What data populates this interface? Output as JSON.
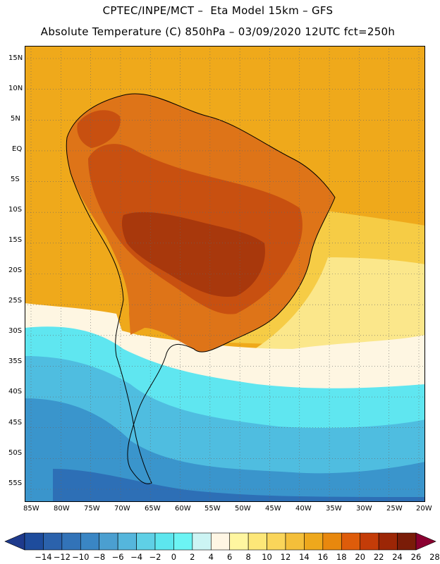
{
  "header": {
    "line1": "CPTEC/INPE/MCT –  Eta Model 15km – GFS",
    "line2": "Absolute Temperature (C) 850hPa – 03/09/2020 12UTC fct=250h"
  },
  "axes": {
    "lat_labels": [
      "15N",
      "10N",
      "5N",
      "EQ",
      "5S",
      "10S",
      "15S",
      "20S",
      "25S",
      "30S",
      "35S",
      "40S",
      "45S",
      "50S",
      "55S"
    ],
    "lon_labels": [
      "85W",
      "80W",
      "75W",
      "70W",
      "65W",
      "60W",
      "55W",
      "50W",
      "45W",
      "40W",
      "35W",
      "30W",
      "25W",
      "20W"
    ]
  },
  "colorbar": {
    "labels": [
      "-14",
      "-12",
      "-10",
      "-8",
      "-6",
      "-4",
      "-2",
      "0",
      "2",
      "4",
      "6",
      "8",
      "10",
      "12",
      "14",
      "16",
      "18",
      "20",
      "22",
      "24",
      "26",
      "28"
    ],
    "colors": [
      "#1e3a8c",
      "#1e4c9c",
      "#2b62ac",
      "#3273b8",
      "#3a86c4",
      "#4b9fd0",
      "#55b6dc",
      "#5fd0e6",
      "#5de6ee",
      "#6cf4f4",
      "#ccf4f4",
      "#fff6e4",
      "#fff6a0",
      "#fde778",
      "#fad55a",
      "#f4bf3a",
      "#eea81c",
      "#e8880e",
      "#de5c0a",
      "#c43c08",
      "#9c2606",
      "#7a1c08",
      "#8a0030"
    ]
  },
  "map": {
    "colors": {
      "ocean_warm": "#efa91b",
      "yellow": "#f6cc45",
      "light_yellow": "#fbe78b",
      "cream": "#fef6e2",
      "cyan": "#5fe6f0",
      "blue_light": "#4fbde0",
      "blue": "#3a95cc",
      "blue_dark": "#2d6fb6",
      "land_warm": "#de7418",
      "land_hot": "#c85010",
      "land_very_hot": "#a8380c"
    }
  }
}
